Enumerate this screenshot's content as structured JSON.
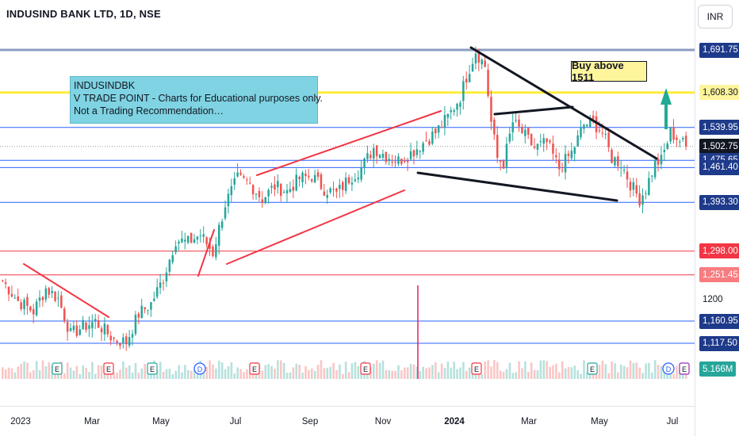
{
  "header": {
    "symbol_title": "INDUSIND BANK LTD, 1D, NSE",
    "currency": "INR"
  },
  "annotations": {
    "note_lines": [
      "INDUSINDBK",
      "V TRADE POINT - Charts for Educational purposes only.",
      "Not a Trading Recommendation…"
    ],
    "buy_label": "Buy above 1511"
  },
  "colors": {
    "up": "#26a69a",
    "down": "#ef5350",
    "trendline": "#131722",
    "channel": "#f23645",
    "level_blue": "#2962ff",
    "level_gray": "#8c9bbf",
    "level_yellow": "#ffeb3b",
    "level_red": "#f23645",
    "arrow": "#22ab94"
  },
  "chart_data": {
    "type": "candlestick",
    "symbol": "INDUSIND BANK LTD",
    "interval": "1D",
    "exchange": "NSE",
    "price_range": [
      1060,
      1710
    ],
    "x_ticks": [
      "2023",
      "Mar",
      "May",
      "Jul",
      "Sep",
      "Nov",
      "2024",
      "Mar",
      "May",
      "Jul"
    ],
    "y_ticks": [
      1200
    ],
    "horizontal_levels": [
      {
        "value": 1691.75,
        "label": "1,691.75",
        "color": "gray"
      },
      {
        "value": 1608.3,
        "label": "1,608.30",
        "color": "yellow"
      },
      {
        "value": 1539.95,
        "label": "1,539.95",
        "color": "blue"
      },
      {
        "value": 1502.75,
        "label": "1,502.75",
        "color": "current"
      },
      {
        "value": 1475.65,
        "label": "1,475.65",
        "color": "blue"
      },
      {
        "value": 1461.4,
        "label": "1,461.40",
        "color": "blue"
      },
      {
        "value": 1393.3,
        "label": "1,393.30",
        "color": "blue"
      },
      {
        "value": 1298.0,
        "label": "1,298.00",
        "color": "red"
      },
      {
        "value": 1251.45,
        "label": "1,251.45",
        "color": "red"
      },
      {
        "value": 1160.95,
        "label": "1,160.95",
        "color": "blue"
      },
      {
        "value": 1117.5,
        "label": "1,117.50",
        "color": "blue"
      }
    ],
    "last_price": {
      "value": 1502.75,
      "label": "1,502.75"
    },
    "volume_label": "5.166M",
    "event_markers": [
      "E",
      "E",
      "E",
      "D",
      "E",
      "E",
      "E",
      "E",
      "D",
      "E"
    ],
    "price_path": [
      [
        0,
        1240
      ],
      [
        5,
        1200
      ],
      [
        10,
        1180
      ],
      [
        14,
        1225
      ],
      [
        18,
        1205
      ],
      [
        22,
        1135
      ],
      [
        26,
        1150
      ],
      [
        30,
        1160
      ],
      [
        36,
        1125
      ],
      [
        40,
        1120
      ],
      [
        44,
        1175
      ],
      [
        48,
        1195
      ],
      [
        52,
        1245
      ],
      [
        56,
        1320
      ],
      [
        60,
        1315
      ],
      [
        64,
        1330
      ],
      [
        68,
        1295
      ],
      [
        72,
        1390
      ],
      [
        76,
        1440
      ],
      [
        80,
        1430
      ],
      [
        84,
        1400
      ],
      [
        88,
        1425
      ],
      [
        92,
        1415
      ],
      [
        96,
        1440
      ],
      [
        100,
        1445
      ],
      [
        104,
        1420
      ],
      [
        108,
        1410
      ],
      [
        112,
        1440
      ],
      [
        116,
        1460
      ],
      [
        120,
        1500
      ],
      [
        124,
        1485
      ],
      [
        128,
        1475
      ],
      [
        132,
        1490
      ],
      [
        136,
        1510
      ],
      [
        140,
        1530
      ],
      [
        144,
        1560
      ],
      [
        148,
        1600
      ],
      [
        150,
        1640
      ],
      [
        153,
        1690
      ],
      [
        156,
        1660
      ],
      [
        158,
        1550
      ],
      [
        160,
        1480
      ],
      [
        162,
        1470
      ],
      [
        165,
        1550
      ],
      [
        168,
        1530
      ],
      [
        172,
        1500
      ],
      [
        176,
        1510
      ],
      [
        180,
        1460
      ],
      [
        184,
        1490
      ],
      [
        188,
        1545
      ],
      [
        191,
        1550
      ],
      [
        194,
        1530
      ],
      [
        197,
        1480
      ],
      [
        200,
        1470
      ],
      [
        203,
        1430
      ],
      [
        206,
        1400
      ],
      [
        208,
        1420
      ],
      [
        211,
        1470
      ],
      [
        213,
        1475
      ],
      [
        216,
        1530
      ],
      [
        218,
        1520
      ],
      [
        221,
        1502.75
      ]
    ]
  }
}
